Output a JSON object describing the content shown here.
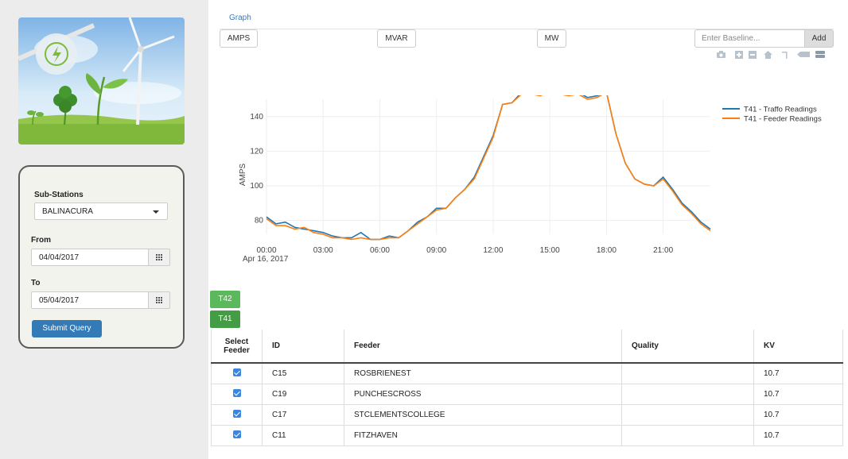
{
  "sidebar": {
    "substation_label": "Sub-Stations",
    "substation_value": "BALINACURA",
    "from_label": "From",
    "from_value": "04/04/2017",
    "to_label": "To",
    "to_value": "05/04/2017",
    "submit_label": "Submit Query"
  },
  "graph_tab": "Graph",
  "measures": [
    "AMPS",
    "MVAR",
    "MW"
  ],
  "baseline": {
    "placeholder": "Enter Baseline...",
    "add_label": "Add"
  },
  "transformer_tabs": [
    {
      "label": "T42",
      "color": "#5cb85c"
    },
    {
      "label": "T41",
      "color": "#449d44"
    }
  ],
  "table": {
    "headers": [
      "Select Feeder",
      "ID",
      "Feeder",
      "Quality",
      "KV"
    ],
    "rows": [
      {
        "checked": true,
        "id": "C15",
        "feeder": "ROSBRIENEST",
        "quality": "",
        "kv": "10.7"
      },
      {
        "checked": true,
        "id": "C19",
        "feeder": "PUNCHESCROSS",
        "quality": "",
        "kv": "10.7"
      },
      {
        "checked": true,
        "id": "C17",
        "feeder": "STCLEMENTSCOLLEGE",
        "quality": "",
        "kv": "10.7"
      },
      {
        "checked": true,
        "id": "C11",
        "feeder": "FITZHAVEN",
        "quality": "",
        "kv": "10.7"
      }
    ]
  },
  "chart_data": {
    "type": "line",
    "ylabel": "AMPS",
    "xlabel": "",
    "date_label": "Apr 16, 2017",
    "x_tick_labels": [
      "00:00",
      "03:00",
      "06:00",
      "09:00",
      "12:00",
      "15:00",
      "18:00",
      "21:00"
    ],
    "y_ticks": [
      80,
      100,
      120,
      140
    ],
    "xlim": [
      0,
      23.5
    ],
    "ylim": [
      72,
      150
    ],
    "legend_position": "top-right",
    "x": [
      0,
      0.5,
      1,
      1.5,
      2,
      2.5,
      3,
      3.5,
      4,
      4.5,
      5,
      5.5,
      6,
      6.5,
      7,
      7.5,
      8,
      8.5,
      9,
      9.5,
      10,
      10.5,
      11,
      11.5,
      12,
      12.5,
      13,
      13.5,
      14,
      14.5,
      15,
      15.5,
      16,
      16.5,
      17,
      17.5,
      18,
      18.5,
      19,
      19.5,
      20,
      20.5,
      21,
      21.5,
      22,
      22.5,
      23,
      23.5
    ],
    "series": [
      {
        "name": "T41 - Traffo Readings",
        "color": "#1f77b4",
        "values": [
          82,
          78,
          79,
          76,
          75,
          74,
          73,
          71,
          70,
          70,
          73,
          69,
          69,
          71,
          70,
          74,
          79,
          82,
          87,
          87,
          93,
          98,
          105,
          117,
          129,
          147,
          148,
          154,
          154,
          153,
          156,
          154,
          153,
          154,
          151,
          152,
          154,
          130,
          113,
          104,
          101,
          100,
          105,
          98,
          90,
          85,
          79,
          75
        ]
      },
      {
        "name": "T41 - Feeder Readings",
        "color": "#ff7f0e",
        "values": [
          81,
          77,
          77,
          75,
          76,
          73,
          72,
          70,
          70,
          69,
          70,
          69,
          69,
          70,
          70,
          74,
          78,
          82,
          86,
          87,
          93,
          98,
          104,
          116,
          128,
          147,
          148,
          153,
          153,
          152,
          155,
          153,
          152,
          153,
          150,
          151,
          154,
          130,
          113,
          104,
          101,
          100,
          104,
          97,
          89,
          84,
          78,
          74
        ]
      }
    ]
  }
}
